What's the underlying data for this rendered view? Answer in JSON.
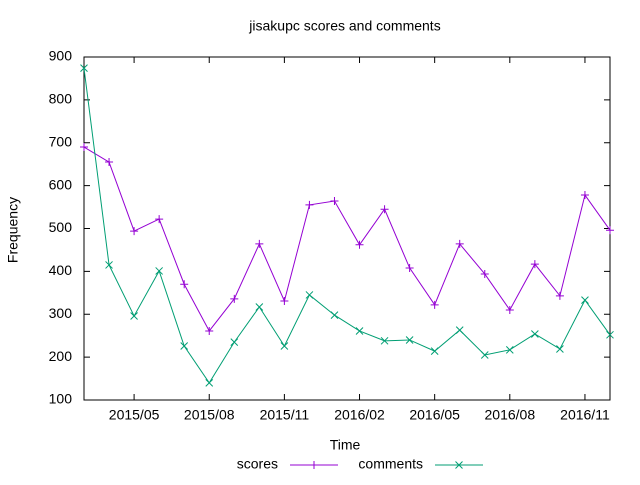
{
  "chart_data": {
    "type": "line",
    "title": "jisakupc scores and comments",
    "xlabel": "Time",
    "ylabel": "Frequency",
    "x": [
      "2015/03",
      "2015/04",
      "2015/05",
      "2015/06",
      "2015/07",
      "2015/08",
      "2015/09",
      "2015/10",
      "2015/11",
      "2015/12",
      "2016/01",
      "2016/02",
      "2016/03",
      "2016/04",
      "2016/05",
      "2016/06",
      "2016/07",
      "2016/08",
      "2016/09",
      "2016/10",
      "2016/11",
      "2016/12"
    ],
    "xlim": [
      "2015/03",
      "2016/12"
    ],
    "xticks": [
      "2015/05",
      "2015/08",
      "2015/11",
      "2016/02",
      "2016/05",
      "2016/08",
      "2016/11"
    ],
    "ylim": [
      100,
      900
    ],
    "yticks": [
      100,
      200,
      300,
      400,
      500,
      600,
      700,
      800,
      900
    ],
    "legend": "bottom",
    "series": [
      {
        "name": "scores",
        "color": "#9400d3",
        "marker": "+",
        "values": [
          690,
          655,
          494,
          522,
          370,
          261,
          336,
          464,
          331,
          555,
          564,
          462,
          545,
          408,
          322,
          464,
          394,
          310,
          417,
          343,
          578,
          496
        ]
      },
      {
        "name": "comments",
        "color": "#009e73",
        "marker": "x",
        "values": [
          874,
          415,
          296,
          401,
          226,
          140,
          235,
          317,
          226,
          345,
          298,
          261,
          238,
          240,
          214,
          263,
          205,
          217,
          254,
          219,
          333,
          252
        ]
      }
    ]
  }
}
